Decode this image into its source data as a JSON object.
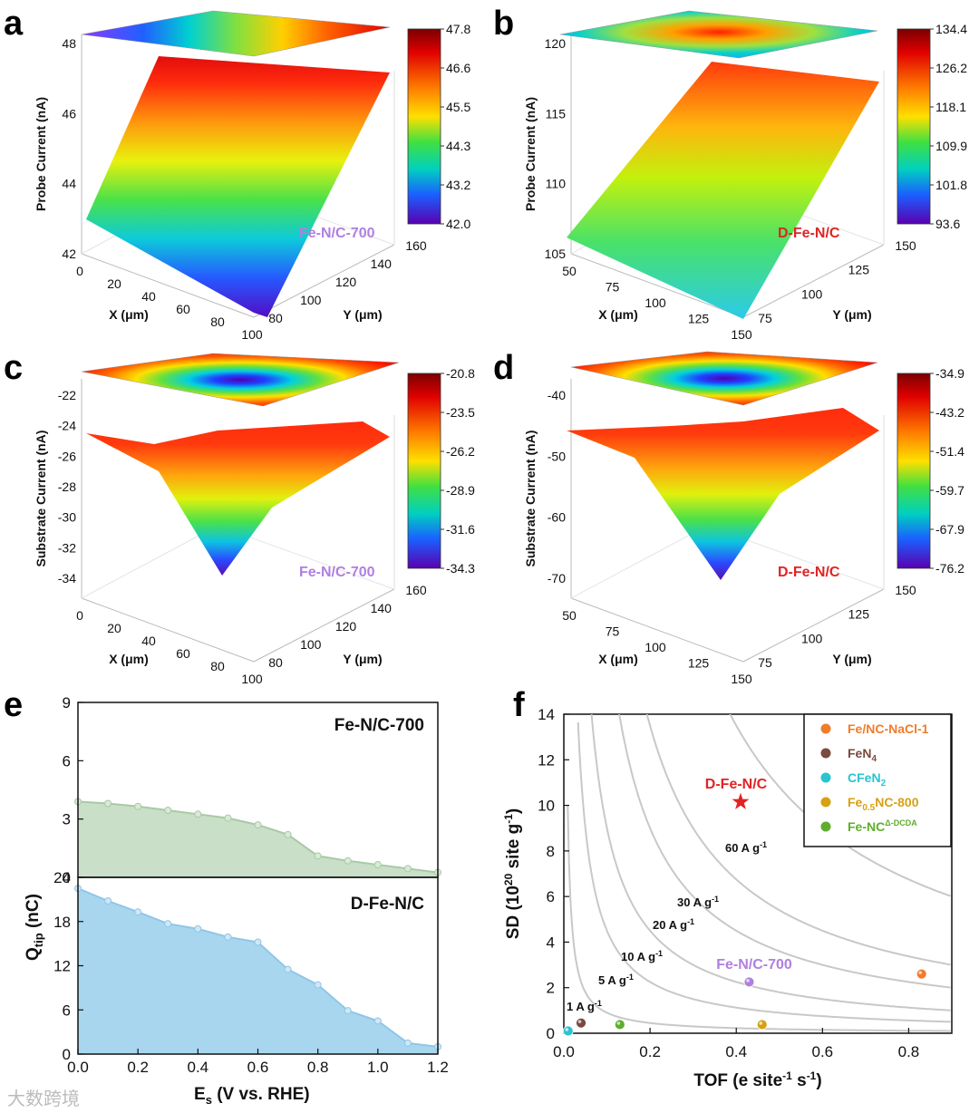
{
  "watermark": "大数跨境",
  "panels_3d": [
    {
      "letter": "a",
      "zlabel": "Probe Current (nA)",
      "zticks": [
        "42",
        "44",
        "46",
        "48"
      ],
      "xlabel": "X (μm)",
      "xticks": [
        "0",
        "20",
        "40",
        "60",
        "80",
        "100"
      ],
      "ylabel": "Y (μm)",
      "yticks": [
        "80",
        "100",
        "120",
        "140",
        "160"
      ],
      "colorbar": [
        "47.8",
        "46.6",
        "45.5",
        "44.3",
        "43.2",
        "42.0"
      ],
      "sample": "Fe-N/C-700",
      "sample_color": "#b07fe0"
    },
    {
      "letter": "b",
      "zlabel": "Probe Current (nA)",
      "zticks": [
        "105",
        "110",
        "115",
        "120"
      ],
      "xlabel": "X (μm)",
      "xticks": [
        "50",
        "75",
        "100",
        "125",
        "150"
      ],
      "ylabel": "Y (μm)",
      "yticks": [
        "75",
        "100",
        "125",
        "150"
      ],
      "colorbar": [
        "134.4",
        "126.2",
        "118.1",
        "109.9",
        "101.8",
        "93.6"
      ],
      "sample": "D-Fe-N/C",
      "sample_color": "#e02424"
    },
    {
      "letter": "c",
      "zlabel": "Substrate Current (nA)",
      "zticks": [
        "-34",
        "-32",
        "-30",
        "-28",
        "-26",
        "-24",
        "-22"
      ],
      "xlabel": "X (μm)",
      "xticks": [
        "0",
        "20",
        "40",
        "60",
        "80",
        "100"
      ],
      "ylabel": "Y (μm)",
      "yticks": [
        "80",
        "100",
        "120",
        "140",
        "160"
      ],
      "colorbar": [
        "-20.8",
        "-23.5",
        "-26.2",
        "-28.9",
        "-31.6",
        "-34.3"
      ],
      "sample": "Fe-N/C-700",
      "sample_color": "#b07fe0"
    },
    {
      "letter": "d",
      "zlabel": "Substrate Current (nA)",
      "zticks": [
        "-70",
        "-60",
        "-50",
        "-40"
      ],
      "xlabel": "X (μm)",
      "xticks": [
        "50",
        "75",
        "100",
        "125",
        "150"
      ],
      "ylabel": "Y (μm)",
      "yticks": [
        "75",
        "100",
        "125",
        "150"
      ],
      "colorbar": [
        "-34.9",
        "-43.2",
        "-51.4",
        "-59.7",
        "-67.9",
        "-76.2"
      ],
      "sample": "D-Fe-N/C",
      "sample_color": "#e02424"
    }
  ],
  "panel_e": {
    "letter": "e",
    "ylabel": "Q",
    "ylabel_sub": "tip",
    "ylabel_unit": " (nC)",
    "xlabel": "E",
    "xlabel_sub": "s",
    "xlabel_unit": " (V vs. RHE)",
    "xticks": [
      "0.0",
      "0.2",
      "0.4",
      "0.6",
      "0.8",
      "1.0",
      "1.2"
    ],
    "top": {
      "label": "Fe-N/C-700",
      "yticks": [
        "0",
        "3",
        "6",
        "9"
      ],
      "fill": "#c9dfc7",
      "line": "#a9c9a6",
      "marker": "#d9ead7"
    },
    "bottom": {
      "label": "D-Fe-N/C",
      "yticks": [
        "0",
        "6",
        "12",
        "18",
        "24"
      ],
      "fill": "#a9d6ef",
      "line": "#8fc6e6",
      "marker": "#cfe7f6"
    }
  },
  "panel_f": {
    "letter": "f",
    "xlabel": "TOF (e site",
    "xlabel_sup1": "-1",
    "xlabel_mid": " s",
    "xlabel_sup2": "-1",
    "xlabel_end": ")",
    "ylabel": "SD (10",
    "ylabel_sup": "20",
    "ylabel_end": " site g",
    "ylabel_sup2": "-1",
    "ylabel_close": ")",
    "xticks": [
      "0.0",
      "0.2",
      "0.4",
      "0.6",
      "0.8"
    ],
    "yticks": [
      "0",
      "2",
      "4",
      "6",
      "8",
      "10",
      "12",
      "14"
    ],
    "contour_labels": [
      {
        "text": "60 A g",
        "sup": "-1"
      },
      {
        "text": "30 A g",
        "sup": "-1"
      },
      {
        "text": "20 A g",
        "sup": "-1"
      },
      {
        "text": "10 A g",
        "sup": "-1"
      },
      {
        "text": "5 A g",
        "sup": "-1"
      },
      {
        "text": "1 A g",
        "sup": "-1"
      }
    ],
    "star_label": "D-Fe-N/C",
    "star_color": "#e02424",
    "fenc_label": "Fe-N/C-700",
    "fenc_color": "#b07fe0",
    "legend": [
      {
        "pre": "Fe/NC-NaCl-1",
        "sub": "",
        "post": "",
        "color": "#f07c2a"
      },
      {
        "pre": "FeN",
        "sub": "4",
        "post": "",
        "color": "#7a4a3e"
      },
      {
        "pre": "CFeN",
        "sub": "2",
        "post": "",
        "color": "#28c4d0"
      },
      {
        "pre": "Fe",
        "sub": "0.5",
        "post": "NC-800",
        "color": "#d8a012"
      },
      {
        "pre": "Fe-NC",
        "sub": "",
        "post": "",
        "sup": "Δ-DCDA",
        "color": "#5fae2c"
      }
    ]
  },
  "chart_data": [
    {
      "type": "heatmap",
      "panel": "a",
      "zlabel": "Probe Current (nA)",
      "xlabel": "X (μm)",
      "ylabel": "Y (μm)",
      "xlim": [
        0,
        100
      ],
      "ylim": [
        70,
        170
      ],
      "zlim": [
        42,
        48
      ],
      "colorbar_range": [
        42.0,
        47.8
      ],
      "surface": "tilted plane rising from ~42.9 nA at low X to ~47 nA at high X"
    },
    {
      "type": "heatmap",
      "panel": "b",
      "zlabel": "Probe Current (nA)",
      "xlabel": "X (μm)",
      "ylabel": "Y (μm)",
      "xlim": [
        50,
        150
      ],
      "ylim": [
        50,
        150
      ],
      "zlim": [
        103,
        124
      ],
      "colorbar_range": [
        93.6,
        134.4
      ],
      "surface": "tilted plane rising from ~103 nA to ~121 nA"
    },
    {
      "type": "heatmap",
      "panel": "c",
      "zlabel": "Substrate Current (nA)",
      "xlabel": "X (μm)",
      "ylabel": "Y (μm)",
      "xlim": [
        0,
        100
      ],
      "ylim": [
        70,
        170
      ],
      "zlim": [
        -35,
        -21
      ],
      "colorbar_range": [
        -34.3,
        -20.8
      ],
      "surface": "bowl with minimum ~-33.8 nA at center"
    },
    {
      "type": "heatmap",
      "panel": "d",
      "zlabel": "Substrate Current (nA)",
      "xlabel": "X (μm)",
      "ylabel": "Y (μm)",
      "xlim": [
        50,
        150
      ],
      "ylim": [
        50,
        150
      ],
      "zlim": [
        -76,
        -35
      ],
      "colorbar_range": [
        -76.2,
        -34.9
      ],
      "surface": "bowl with minimum ~-74 nA at center"
    },
    {
      "type": "area",
      "panel": "e-top",
      "xlabel": "Es (V vs. RHE)",
      "ylabel": "Qtip (nC)",
      "xlim": [
        0,
        1.2
      ],
      "ylim": [
        0,
        9
      ],
      "series": [
        {
          "name": "Fe-N/C-700",
          "x": [
            0.0,
            0.1,
            0.2,
            0.3,
            0.4,
            0.5,
            0.6,
            0.7,
            0.8,
            0.9,
            1.0,
            1.1,
            1.2
          ],
          "y": [
            3.9,
            3.8,
            3.65,
            3.45,
            3.25,
            3.05,
            2.7,
            2.2,
            1.1,
            0.85,
            0.65,
            0.45,
            0.25
          ]
        }
      ]
    },
    {
      "type": "area",
      "panel": "e-bottom",
      "xlabel": "Es (V vs. RHE)",
      "ylabel": "Qtip (nC)",
      "xlim": [
        0,
        1.2
      ],
      "ylim": [
        0,
        24
      ],
      "series": [
        {
          "name": "D-Fe-N/C",
          "x": [
            0.0,
            0.1,
            0.2,
            0.3,
            0.4,
            0.5,
            0.6,
            0.7,
            0.8,
            0.9,
            1.0,
            1.1,
            1.2
          ],
          "y": [
            22.5,
            20.8,
            19.3,
            17.7,
            17.0,
            15.9,
            15.2,
            11.5,
            9.4,
            5.9,
            4.5,
            1.5,
            1.0
          ]
        }
      ]
    },
    {
      "type": "scatter",
      "panel": "f",
      "xlabel": "TOF (e site-1 s-1)",
      "ylabel": "SD (10^20 site g-1)",
      "xlim": [
        0,
        0.9
      ],
      "ylim": [
        0,
        14
      ],
      "contours_A_per_g": [
        1,
        5,
        10,
        20,
        30,
        60
      ],
      "points": [
        {
          "name": "Fe/NC-NaCl-1",
          "x": 0.83,
          "y": 2.6
        },
        {
          "name": "FeN4",
          "x": 0.04,
          "y": 0.45
        },
        {
          "name": "CFeN2",
          "x": 0.01,
          "y": 0.1
        },
        {
          "name": "Fe0.5NC-800",
          "x": 0.46,
          "y": 0.38
        },
        {
          "name": "Fe-NCΔ-DCDA",
          "x": 0.13,
          "y": 0.38
        },
        {
          "name": "Fe-N/C-700",
          "x": 0.43,
          "y": 2.25
        },
        {
          "name": "D-Fe-N/C",
          "x": 0.41,
          "y": 10.15
        }
      ]
    }
  ]
}
